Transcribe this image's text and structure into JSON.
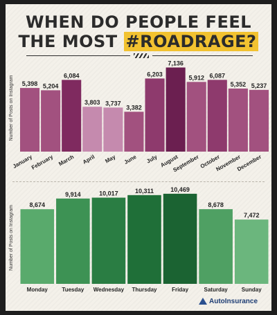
{
  "title": {
    "line1": "WHEN DO PEOPLE FEEL",
    "line2_prefix": "THE MOST ",
    "line2_hashtag": "#ROADRAGE?"
  },
  "brand": {
    "name": "AutoInsurance",
    "icon": "triangle-logo-icon"
  },
  "chart_data": [
    {
      "type": "bar",
      "ylabel": "Number of Posts on Instagram",
      "ylim": [
        0,
        7400
      ],
      "categories": [
        "January",
        "February",
        "March",
        "April",
        "May",
        "June",
        "July",
        "August",
        "September",
        "October",
        "November",
        "December"
      ],
      "values": [
        5398,
        5204,
        6084,
        3803,
        3737,
        3382,
        6203,
        7136,
        5912,
        6087,
        5352,
        5237
      ],
      "value_labels": [
        "5,398",
        "5,204",
        "6,084",
        "3,803",
        "3,737",
        "3,382",
        "6,203",
        "7,136",
        "5,912",
        "6,087",
        "5,352",
        "5,237"
      ],
      "colors": [
        "#a2517f",
        "#a2517f",
        "#7f2a5f",
        "#c58aae",
        "#c58aae",
        "#a2517f",
        "#8e3a6d",
        "#6b1f50",
        "#a2517f",
        "#8e3a6d",
        "#a2517f",
        "#a2517f"
      ]
    },
    {
      "type": "bar",
      "ylabel": "Number of Posts on Instagram",
      "ylim": [
        0,
        10700
      ],
      "categories": [
        "Monday",
        "Tuesday",
        "Wednesday",
        "Thursday",
        "Friday",
        "Saturday",
        "Sunday"
      ],
      "values": [
        8674,
        9914,
        10017,
        10311,
        10469,
        8678,
        7472
      ],
      "value_labels": [
        "8,674",
        "9,914",
        "10,017",
        "10,311",
        "10,469",
        "8,678",
        "7,472"
      ],
      "colors": [
        "#59aa6c",
        "#3d9254",
        "#2a7d43",
        "#1f6f38",
        "#1b6332",
        "#4fa063",
        "#6bb67d"
      ]
    }
  ]
}
